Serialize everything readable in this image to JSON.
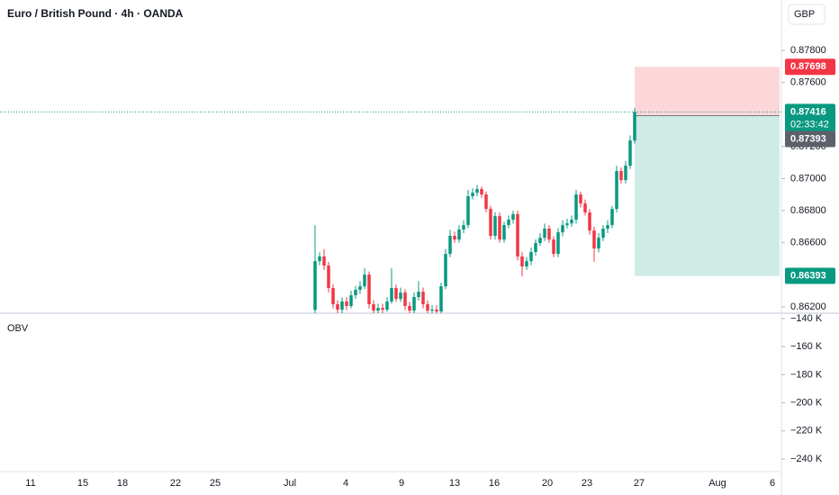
{
  "chart_data": {
    "type": "candlestick",
    "title": "Euro / British Pound · 4h · OANDA",
    "currency": "GBP",
    "up_color": "#089981",
    "down_color": "#f23645",
    "ylim": [
      0.8616,
      0.88115
    ],
    "yticks": [
      {
        "value": 0.878,
        "label": "0.87800"
      },
      {
        "value": 0.876,
        "label": "0.87600"
      },
      {
        "value": 0.872,
        "label": "0.87200"
      },
      {
        "value": 0.87,
        "label": "0.87000"
      },
      {
        "value": 0.868,
        "label": "0.86800"
      },
      {
        "value": 0.866,
        "label": "0.86600"
      },
      {
        "value": 0.862,
        "label": "0.86200"
      }
    ],
    "x_labels": [
      "11",
      "15",
      "18",
      "22",
      "25",
      "Jul",
      "4",
      "9",
      "13",
      "16",
      "20",
      "23",
      "27",
      "Aug",
      "6"
    ],
    "ohlc": {
      "open": [
        0.8618,
        0.86485,
        0.86514,
        0.86457,
        0.86317,
        0.86216,
        0.86182,
        0.86233,
        0.86205,
        0.86272,
        0.86306,
        0.86328,
        0.86401,
        0.86216,
        0.86176,
        0.86193,
        0.86182,
        0.86233,
        0.86317,
        0.86249,
        0.86289,
        0.86205,
        0.86176,
        0.86261,
        0.86294,
        0.86216,
        0.86176,
        0.86182,
        0.86171,
        0.86328,
        0.8653,
        0.86643,
        0.8662,
        0.86682,
        0.8671,
        0.8689,
        0.86912,
        0.86935,
        0.86901,
        0.86811,
        0.86643,
        0.86766,
        0.8662,
        0.8671,
        0.86744,
        0.86778,
        0.86514,
        0.86452,
        0.86485,
        0.86542,
        0.86598,
        0.86631,
        0.86688,
        0.8662,
        0.8653,
        0.86665,
        0.8671,
        0.86721,
        0.86744,
        0.86901,
        0.86845,
        0.86789,
        0.86676,
        0.86564,
        0.86631,
        0.86688,
        0.8671,
        0.86811,
        0.87047,
        0.86991,
        0.87081,
        0.87238
      ],
      "high": [
        0.8671,
        0.8654,
        0.8656,
        0.8648,
        0.8634,
        0.8624,
        0.8626,
        0.8626,
        0.863,
        0.8633,
        0.8636,
        0.8644,
        0.8642,
        0.8624,
        0.8622,
        0.8622,
        0.8626,
        0.8644,
        0.8634,
        0.8632,
        0.8631,
        0.8623,
        0.8629,
        0.8636,
        0.8632,
        0.8624,
        0.8621,
        0.8621,
        0.8635,
        0.8656,
        0.8668,
        0.8667,
        0.8671,
        0.8674,
        0.8693,
        0.8694,
        0.8696,
        0.8695,
        0.8692,
        0.8683,
        0.8679,
        0.8679,
        0.8673,
        0.8677,
        0.868,
        0.868,
        0.8654,
        0.8651,
        0.8657,
        0.8662,
        0.8666,
        0.8672,
        0.8671,
        0.8664,
        0.8669,
        0.8674,
        0.8675,
        0.8677,
        0.8693,
        0.8692,
        0.8687,
        0.8681,
        0.867,
        0.8666,
        0.8671,
        0.8674,
        0.8683,
        0.8708,
        0.8707,
        0.8711,
        0.8727,
        0.8744
      ],
      "low": [
        0.8616,
        0.8646,
        0.8643,
        0.8629,
        0.8619,
        0.8616,
        0.8616,
        0.8618,
        0.8619,
        0.8625,
        0.8628,
        0.8631,
        0.8619,
        0.8616,
        0.8616,
        0.8616,
        0.8617,
        0.8622,
        0.8623,
        0.8623,
        0.8618,
        0.8616,
        0.8616,
        0.8624,
        0.8619,
        0.8616,
        0.8616,
        0.8616,
        0.8616,
        0.8631,
        0.8651,
        0.866,
        0.866,
        0.8666,
        0.8669,
        0.8687,
        0.8689,
        0.8688,
        0.8679,
        0.8662,
        0.8662,
        0.866,
        0.866,
        0.8669,
        0.8672,
        0.8649,
        0.8639,
        0.8643,
        0.8646,
        0.8652,
        0.8658,
        0.8661,
        0.866,
        0.8651,
        0.8651,
        0.8664,
        0.8669,
        0.867,
        0.8672,
        0.8682,
        0.8677,
        0.8665,
        0.8648,
        0.8654,
        0.8661,
        0.8666,
        0.8669,
        0.8679,
        0.8697,
        0.8697,
        0.8706,
        0.8722
      ],
      "close": [
        0.86485,
        0.86514,
        0.86457,
        0.86317,
        0.86216,
        0.86182,
        0.86233,
        0.86205,
        0.86272,
        0.86306,
        0.86328,
        0.86401,
        0.86216,
        0.86176,
        0.86193,
        0.86182,
        0.86233,
        0.86317,
        0.86249,
        0.86289,
        0.86205,
        0.86176,
        0.86261,
        0.86294,
        0.86216,
        0.86176,
        0.86182,
        0.86171,
        0.86328,
        0.8653,
        0.86643,
        0.8662,
        0.86682,
        0.8671,
        0.8689,
        0.86912,
        0.86935,
        0.86901,
        0.86811,
        0.86643,
        0.86766,
        0.8662,
        0.8671,
        0.86744,
        0.86778,
        0.86514,
        0.86452,
        0.86485,
        0.86542,
        0.86598,
        0.86631,
        0.86688,
        0.8662,
        0.8653,
        0.86665,
        0.8671,
        0.86721,
        0.86744,
        0.86901,
        0.86845,
        0.86789,
        0.86676,
        0.86564,
        0.86631,
        0.86688,
        0.8671,
        0.86811,
        0.87047,
        0.86991,
        0.87081,
        0.87238,
        0.87416
      ]
    },
    "last_price": 0.87416,
    "countdown": "02:33:42",
    "position": {
      "stop": 0.87698,
      "entry": 0.87393,
      "target": 0.86393
    },
    "obv": {
      "title": "OBV",
      "ylim": [
        -249600,
        -136150
      ],
      "yticks": [
        {
          "value": -140000,
          "label": "−140 K"
        },
        {
          "value": -160000,
          "label": "−160 K"
        },
        {
          "value": -180000,
          "label": "−180 K"
        },
        {
          "value": -200000,
          "label": "−200 K"
        },
        {
          "value": -220000,
          "label": "−220 K"
        },
        {
          "value": -240000,
          "label": "−240 K"
        }
      ]
    }
  }
}
